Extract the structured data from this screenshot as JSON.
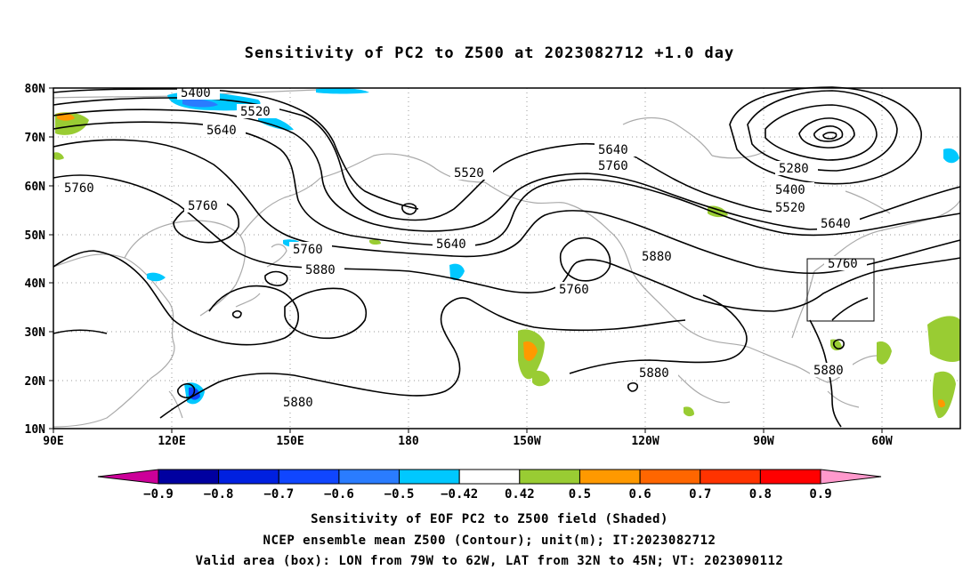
{
  "title": "Sensitivity of PC2 to Z500 at 2023082712 +1.0 day",
  "map": {
    "lat_labels": [
      "80N",
      "70N",
      "60N",
      "50N",
      "40N",
      "30N",
      "20N",
      "10N"
    ],
    "lon_labels": [
      "90E",
      "120E",
      "150E",
      "180",
      "150W",
      "120W",
      "90W",
      "60W"
    ],
    "domain": {
      "lon_min": 90,
      "lon_max": 305,
      "lat_min": 10,
      "lat_max": 80
    },
    "valid_box": {
      "lon_w": -79,
      "lon_e": -62,
      "lat_s": 32,
      "lat_n": 45
    },
    "contour_labels": [
      "5400",
      "5520",
      "5640",
      "5760",
      "5760",
      "5520",
      "5760",
      "5880",
      "5640",
      "5640",
      "5760",
      "5760",
      "5880",
      "5280",
      "5400",
      "5520",
      "5640",
      "5760",
      "5880",
      "5880",
      "5880"
    ]
  },
  "colorbar": {
    "labels": [
      "-0.9",
      "-0.8",
      "-0.7",
      "-0.6",
      "-0.5",
      "-0.42",
      "0.42",
      "0.5",
      "0.6",
      "0.7",
      "0.8",
      "0.9"
    ],
    "colors": [
      "#0000a0",
      "#0020e0",
      "#1046ff",
      "#2a7cff",
      "#00c8ff",
      "#ffffff",
      "#99cc33",
      "#ff9900",
      "#ff6600",
      "#ff3300",
      "#ff0000"
    ],
    "low_arrow_color": "#cc0099",
    "high_arrow_color": "#ff99cc"
  },
  "captions": [
    "Sensitivity of EOF PC2 to Z500 field (Shaded)",
    "NCEP ensemble mean Z500 (Contour); unit(m); IT:2023082712",
    "Valid area (box): LON from 79W to 62W, LAT from 32N to 45N; VT: 2023090112"
  ]
}
